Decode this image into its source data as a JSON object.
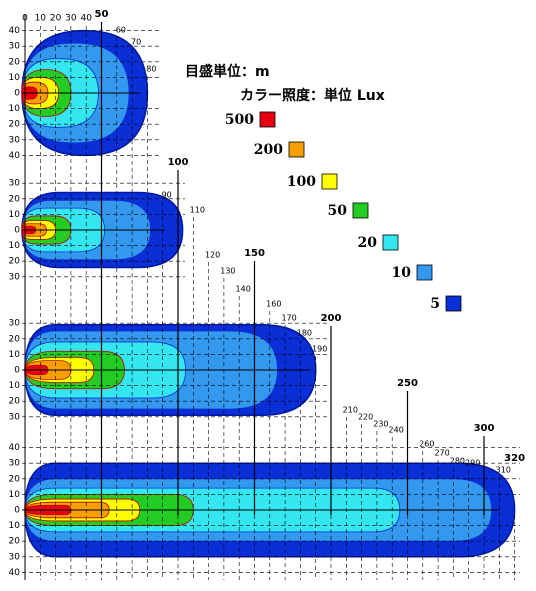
{
  "header": {
    "scale_unit": "目盛単位：m",
    "color_unit": "カラー照度：単位 Lux"
  },
  "legend": [
    {
      "label": 500,
      "color": "#e60012"
    },
    {
      "label": 200,
      "color": "#f5a000"
    },
    {
      "label": 100,
      "color": "#ffff00"
    },
    {
      "label": 50,
      "color": "#22cc22"
    },
    {
      "label": 20,
      "color": "#33e6f0"
    },
    {
      "label": 10,
      "color": "#3399ee"
    },
    {
      "label": 5,
      "color": "#0a2fd6"
    }
  ],
  "top_axis": [
    0,
    10,
    20,
    30,
    40
  ],
  "distance_labels": [
    50,
    60,
    70,
    80,
    90,
    100,
    110,
    120,
    130,
    140,
    150,
    160,
    170,
    180,
    190,
    200,
    210,
    220,
    230,
    240,
    250,
    260,
    270,
    280,
    290,
    300,
    310,
    320
  ],
  "panels": [
    {
      "yticks": [
        40,
        30,
        20,
        10,
        0,
        10,
        20,
        30,
        40
      ]
    },
    {
      "yticks": [
        30,
        20,
        10,
        0,
        10,
        20,
        30
      ]
    },
    {
      "yticks": [
        30,
        20,
        10,
        0,
        10,
        20,
        30
      ]
    },
    {
      "yticks": [
        40,
        30,
        20,
        10,
        0,
        10,
        20,
        30,
        40
      ]
    }
  ]
}
